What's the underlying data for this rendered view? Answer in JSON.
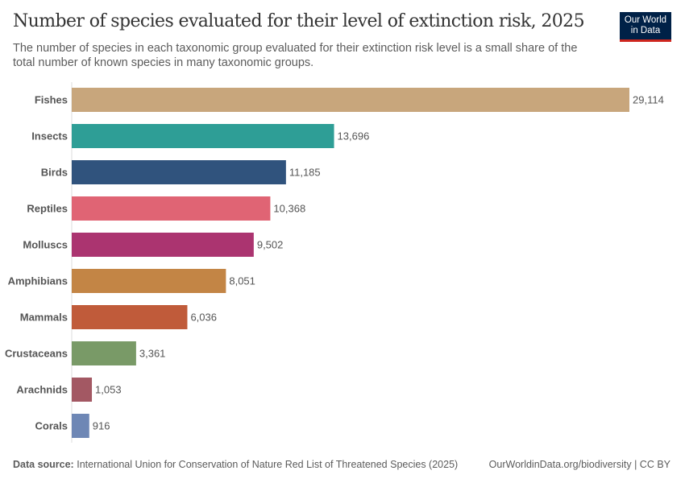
{
  "header": {
    "title": "Number of species evaluated for their level of extinction risk, 2025",
    "subtitle": "The number of species in each taxonomic group evaluated for their extinction risk level is a small share of the total number of known species in many taxonomic groups.",
    "logo": "Our World in Data"
  },
  "footer": {
    "source_label": "Data source:",
    "source": "International Union for Conservation of Nature Red List of Threatened Species (2025)",
    "url": "OurWorldinData.org/biodiversity | CC BY"
  },
  "chart_data": {
    "type": "bar",
    "orientation": "horizontal",
    "categories": [
      "Fishes",
      "Insects",
      "Birds",
      "Reptiles",
      "Molluscs",
      "Amphibians",
      "Mammals",
      "Crustaceans",
      "Arachnids",
      "Corals"
    ],
    "values": [
      29114,
      13696,
      11185,
      10368,
      9502,
      8051,
      6036,
      3361,
      1053,
      916
    ],
    "labels": [
      "29,114",
      "13,696",
      "11,185",
      "10,368",
      "9,502",
      "8,051",
      "6,036",
      "3,361",
      "1,053",
      "916"
    ],
    "colors": [
      "#c8a67c",
      "#2e9e96",
      "#30537d",
      "#e06474",
      "#ab3470",
      "#c38545",
      "#c05b3a",
      "#799a67",
      "#a35863",
      "#6e87b5"
    ],
    "xlim": [
      0,
      29114
    ]
  }
}
